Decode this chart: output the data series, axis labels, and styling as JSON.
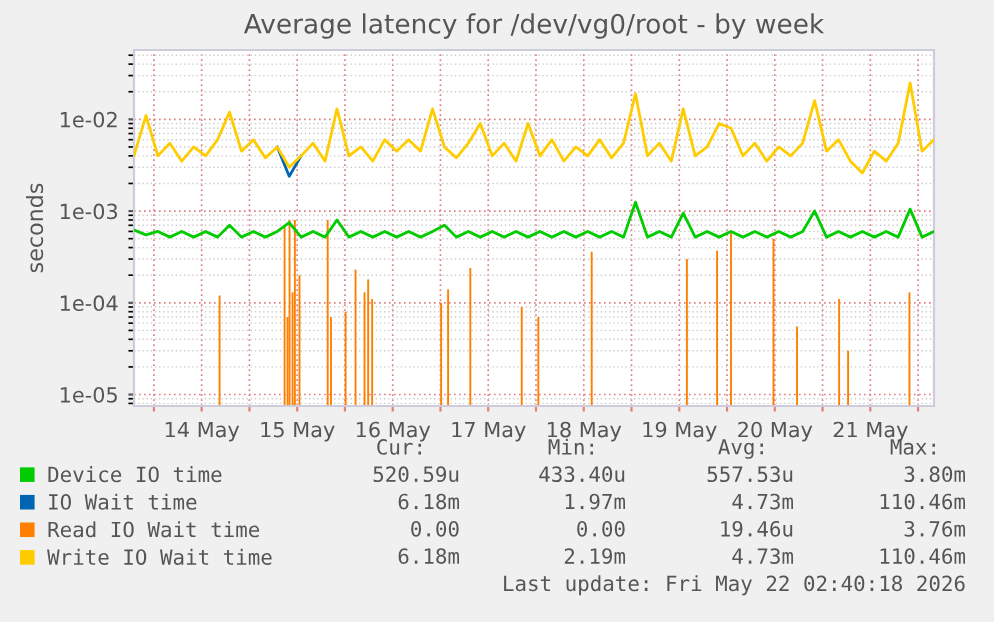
{
  "chart_data": {
    "type": "line",
    "title": "Average latency for /dev/vg0/root - by week",
    "ylabel": "seconds",
    "log": true,
    "grid": true,
    "legend": "bottom",
    "marker": "none",
    "line_style": "solid",
    "xlim": [
      "2026-05-13T19:00",
      "2026-05-22T04:00"
    ],
    "xticks": [
      {
        "value": "2026-05-14T00:00",
        "label": null
      },
      {
        "value": "2026-05-14T12:00",
        "label": "14 May"
      },
      {
        "value": "2026-05-15T00:00",
        "label": null
      },
      {
        "value": "2026-05-15T12:00",
        "label": "15 May"
      },
      {
        "value": "2026-05-16T00:00",
        "label": null
      },
      {
        "value": "2026-05-16T12:00",
        "label": "16 May"
      },
      {
        "value": "2026-05-17T00:00",
        "label": null
      },
      {
        "value": "2026-05-17T12:00",
        "label": "17 May"
      },
      {
        "value": "2026-05-18T00:00",
        "label": null
      },
      {
        "value": "2026-05-18T12:00",
        "label": "18 May"
      },
      {
        "value": "2026-05-19T00:00",
        "label": null
      },
      {
        "value": "2026-05-19T12:00",
        "label": "19 May"
      },
      {
        "value": "2026-05-20T00:00",
        "label": null
      },
      {
        "value": "2026-05-20T12:00",
        "label": "20 May"
      },
      {
        "value": "2026-05-21T00:00",
        "label": null
      },
      {
        "value": "2026-05-21T12:00",
        "label": "21 May"
      },
      {
        "value": "2026-05-22T00:00",
        "label": null
      }
    ],
    "ylim": [
      7.5e-06,
      0.057
    ],
    "yticks": [
      {
        "value": 1e-05,
        "label": "1e-05"
      },
      {
        "value": 0.0001,
        "label": "1e-04"
      },
      {
        "value": 0.001,
        "label": "1e-03"
      },
      {
        "value": 0.01,
        "label": "1e-02"
      }
    ],
    "x": [
      "2026-05-13T19:00",
      "2026-05-13T22:00",
      "2026-05-14T01:00",
      "2026-05-14T04:00",
      "2026-05-14T07:00",
      "2026-05-14T10:00",
      "2026-05-14T13:00",
      "2026-05-14T16:00",
      "2026-05-14T19:00",
      "2026-05-14T22:00",
      "2026-05-15T01:00",
      "2026-05-15T04:00",
      "2026-05-15T07:00",
      "2026-05-15T10:00",
      "2026-05-15T13:00",
      "2026-05-15T16:00",
      "2026-05-15T19:00",
      "2026-05-15T22:00",
      "2026-05-16T01:00",
      "2026-05-16T04:00",
      "2026-05-16T07:00",
      "2026-05-16T10:00",
      "2026-05-16T13:00",
      "2026-05-16T16:00",
      "2026-05-16T19:00",
      "2026-05-16T22:00",
      "2026-05-17T01:00",
      "2026-05-17T04:00",
      "2026-05-17T07:00",
      "2026-05-17T10:00",
      "2026-05-17T13:00",
      "2026-05-17T16:00",
      "2026-05-17T19:00",
      "2026-05-17T22:00",
      "2026-05-18T01:00",
      "2026-05-18T04:00",
      "2026-05-18T07:00",
      "2026-05-18T10:00",
      "2026-05-18T13:00",
      "2026-05-18T16:00",
      "2026-05-18T19:00",
      "2026-05-18T22:00",
      "2026-05-19T01:00",
      "2026-05-19T04:00",
      "2026-05-19T07:00",
      "2026-05-19T10:00",
      "2026-05-19T13:00",
      "2026-05-19T16:00",
      "2026-05-19T19:00",
      "2026-05-19T22:00",
      "2026-05-20T01:00",
      "2026-05-20T04:00",
      "2026-05-20T07:00",
      "2026-05-20T10:00",
      "2026-05-20T13:00",
      "2026-05-20T16:00",
      "2026-05-20T19:00",
      "2026-05-20T22:00",
      "2026-05-21T01:00",
      "2026-05-21T04:00",
      "2026-05-21T07:00",
      "2026-05-21T10:00",
      "2026-05-21T13:00",
      "2026-05-21T16:00",
      "2026-05-21T19:00",
      "2026-05-21T22:00",
      "2026-05-22T01:00",
      "2026-05-22T04:00"
    ],
    "series": [
      {
        "name": "Device IO time",
        "color": "#00cc00",
        "values": [
          0.00062,
          0.00055,
          0.0006,
          0.00052,
          0.0006,
          0.00052,
          0.0006,
          0.00052,
          0.0007,
          0.00052,
          0.0006,
          0.00052,
          0.0006,
          0.00075,
          0.00052,
          0.0006,
          0.00052,
          0.0008,
          0.00052,
          0.0006,
          0.00052,
          0.0006,
          0.00052,
          0.0006,
          0.00052,
          0.0006,
          0.0007,
          0.00052,
          0.0006,
          0.00052,
          0.0006,
          0.00052,
          0.0006,
          0.00052,
          0.0006,
          0.00052,
          0.0006,
          0.00052,
          0.0006,
          0.00052,
          0.0006,
          0.00052,
          0.00125,
          0.00052,
          0.0006,
          0.00052,
          0.00095,
          0.00052,
          0.0006,
          0.00052,
          0.0006,
          0.00052,
          0.0006,
          0.00052,
          0.0006,
          0.00052,
          0.0006,
          0.001,
          0.00052,
          0.0006,
          0.00052,
          0.0006,
          0.00052,
          0.0006,
          0.00052,
          0.00105,
          0.00052,
          0.0006
        ]
      },
      {
        "name": "IO Wait time",
        "color": "#0066b3",
        "values": [
          null,
          null,
          null,
          null,
          null,
          null,
          null,
          null,
          null,
          null,
          null,
          null,
          0.005,
          0.0024,
          0.004,
          null,
          null,
          null,
          null,
          null,
          null,
          null,
          null,
          null,
          null,
          null,
          null,
          null,
          null,
          null,
          null,
          null,
          null,
          null,
          null,
          null,
          null,
          null,
          null,
          null,
          null,
          null,
          null,
          null,
          null,
          null,
          null,
          null,
          null,
          null,
          null,
          null,
          null,
          null,
          null,
          null,
          null,
          null,
          null,
          null,
          null,
          null,
          null,
          null,
          null,
          null,
          null,
          null
        ]
      },
      {
        "name": "Read IO Wait time",
        "color": "#ff8000",
        "type": "bar",
        "x": [
          "2026-05-14T16:30",
          "2026-05-15T08:50",
          "2026-05-15T09:35",
          "2026-05-15T10:05",
          "2026-05-15T10:50",
          "2026-05-15T11:25",
          "2026-05-15T12:35",
          "2026-05-15T19:40",
          "2026-05-15T20:30",
          "2026-05-16T00:10",
          "2026-05-16T02:40",
          "2026-05-16T04:55",
          "2026-05-16T05:50",
          "2026-05-16T06:50",
          "2026-05-17T00:10",
          "2026-05-17T01:55",
          "2026-05-17T07:30",
          "2026-05-17T20:25",
          "2026-05-18T00:35",
          "2026-05-18T14:00",
          "2026-05-19T13:55",
          "2026-05-19T21:30",
          "2026-05-20T01:00",
          "2026-05-20T11:40",
          "2026-05-20T17:35",
          "2026-05-21T04:10",
          "2026-05-21T06:25",
          "2026-05-21T21:50"
        ],
        "values": [
          0.00012,
          0.0007,
          7e-05,
          0.0008,
          0.00013,
          0.0008,
          0.0002,
          0.0008,
          7e-05,
          8e-05,
          0.00023,
          0.00013,
          0.00018,
          0.00011,
          0.0001,
          0.00014,
          0.00024,
          9e-05,
          7e-05,
          0.00036,
          0.0003,
          0.00037,
          0.0006,
          0.0005,
          5.5e-05,
          0.00011,
          3e-05,
          0.00013
        ]
      },
      {
        "name": "Write IO Wait time",
        "color": "#ffcc00",
        "values": [
          0.004,
          0.011,
          0.004,
          0.0055,
          0.0035,
          0.005,
          0.004,
          0.006,
          0.012,
          0.0045,
          0.006,
          0.0038,
          0.005,
          0.003,
          0.004,
          0.0055,
          0.0035,
          0.013,
          0.004,
          0.005,
          0.0035,
          0.006,
          0.0045,
          0.006,
          0.0045,
          0.013,
          0.005,
          0.0038,
          0.0055,
          0.009,
          0.004,
          0.0055,
          0.0035,
          0.009,
          0.004,
          0.006,
          0.0035,
          0.005,
          0.004,
          0.006,
          0.0038,
          0.0055,
          0.019,
          0.004,
          0.0055,
          0.0035,
          0.013,
          0.004,
          0.005,
          0.009,
          0.008,
          0.004,
          0.0055,
          0.0035,
          0.005,
          0.004,
          0.0055,
          0.016,
          0.0045,
          0.006,
          0.0035,
          0.0026,
          0.0045,
          0.0035,
          0.0055,
          0.025,
          0.0045,
          0.006
        ]
      }
    ],
    "annotations": [
      "Cur:",
      "Min:",
      "Avg:",
      "Max:",
      "520.59u",
      "433.40u",
      "557.53u",
      "3.80m",
      "6.18m",
      "1.97m",
      "4.73m",
      "110.46m",
      "0.00",
      "0.00",
      "19.46u",
      "3.76m",
      "6.18m",
      "2.19m",
      "4.73m",
      "110.46m",
      "Last update: Fri May 22 02:40:18 2026"
    ]
  }
}
